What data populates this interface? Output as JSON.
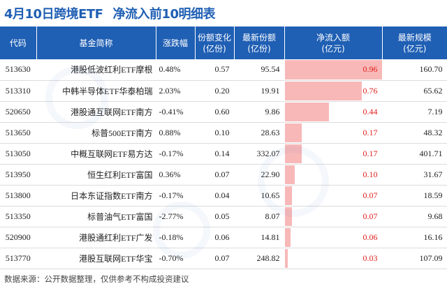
{
  "title": {
    "date_part": "4月10日跨境ETF",
    "main_part": "净流入前10明细表"
  },
  "table": {
    "headers": {
      "code": "代码",
      "name": "基金简称",
      "change": "涨跌幅",
      "share_change": "份额变化\n(亿份)",
      "latest_share": "最新份额\n(亿份)",
      "net_inflow": "净流入额\n(亿元)",
      "latest_scale": "最新规模\n(亿元)"
    },
    "rows": [
      {
        "code": "513630",
        "name": "港股低波红利ETF摩根",
        "change": "0.48%",
        "dir": "up",
        "share_change": "0.57",
        "latest_share": "95.54",
        "net_inflow": "0.96",
        "inflow_value": 0.96,
        "latest_scale": "160.70"
      },
      {
        "code": "513310",
        "name": "中韩半导体ETF华泰柏瑞",
        "change": "2.03%",
        "dir": "up",
        "share_change": "0.20",
        "latest_share": "19.91",
        "net_inflow": "0.76",
        "inflow_value": 0.76,
        "latest_scale": "65.62"
      },
      {
        "code": "520650",
        "name": "港股通互联网ETF南方",
        "change": "-0.41%",
        "dir": "down",
        "share_change": "0.60",
        "latest_share": "9.86",
        "net_inflow": "0.44",
        "inflow_value": 0.44,
        "latest_scale": "7.19"
      },
      {
        "code": "513650",
        "name": "标普500ETF南方",
        "change": "0.88%",
        "dir": "up",
        "share_change": "0.10",
        "latest_share": "28.63",
        "net_inflow": "0.17",
        "inflow_value": 0.17,
        "latest_scale": "48.32"
      },
      {
        "code": "513050",
        "name": "中概互联网ETF易方达",
        "change": "-0.17%",
        "dir": "down",
        "share_change": "0.14",
        "latest_share": "332.07",
        "net_inflow": "0.17",
        "inflow_value": 0.17,
        "latest_scale": "401.71"
      },
      {
        "code": "513950",
        "name": "恒生红利ETF富国",
        "change": "0.36%",
        "dir": "up",
        "share_change": "0.07",
        "latest_share": "22.90",
        "net_inflow": "0.10",
        "inflow_value": 0.1,
        "latest_scale": "31.67"
      },
      {
        "code": "513800",
        "name": "日本东证指数ETF南方",
        "change": "-0.17%",
        "dir": "down",
        "share_change": "0.04",
        "latest_share": "10.65",
        "net_inflow": "0.07",
        "inflow_value": 0.07,
        "latest_scale": "18.59"
      },
      {
        "code": "513350",
        "name": "标普油气ETF富国",
        "change": "-2.77%",
        "dir": "down",
        "share_change": "0.05",
        "latest_share": "8.07",
        "net_inflow": "0.07",
        "inflow_value": 0.07,
        "latest_scale": "9.68"
      },
      {
        "code": "520900",
        "name": "港股通红利ETF广发",
        "change": "-0.18%",
        "dir": "down",
        "share_change": "0.06",
        "latest_share": "14.81",
        "net_inflow": "0.06",
        "inflow_value": 0.06,
        "latest_scale": "16.16"
      },
      {
        "code": "513770",
        "name": "港股互联网ETF华宝",
        "change": "-0.70%",
        "dir": "down",
        "share_change": "0.07",
        "latest_share": "248.82",
        "net_inflow": "0.03",
        "inflow_value": 0.03,
        "latest_scale": "107.09"
      }
    ]
  },
  "footer": "数据来源：公开数据整理，仅供参考不构成投资建议",
  "colors": {
    "header_bg": "#1f5fb4",
    "up": "#e0201c",
    "down": "#1a8a2a",
    "bar": "#f8b8b8"
  }
}
